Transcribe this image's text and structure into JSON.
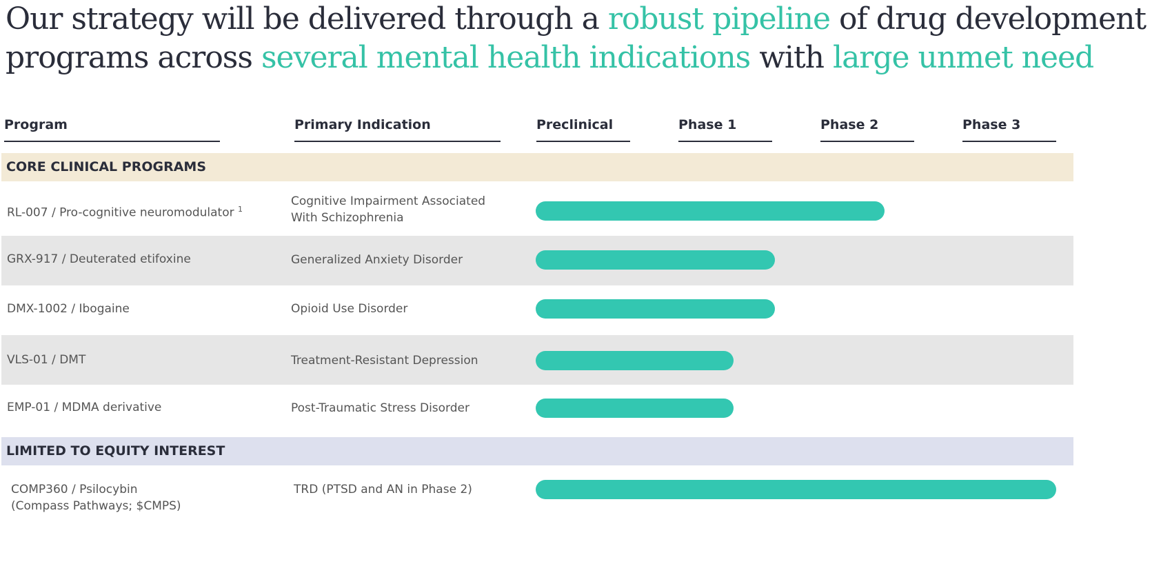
{
  "title": {
    "parts": [
      {
        "text": "Our strategy will be delivered through a ",
        "highlight": false
      },
      {
        "text": "robust pipeline",
        "highlight": true
      },
      {
        "text": " of drug development",
        "highlight": false
      },
      {
        "text": "programs across ",
        "highlight": false
      },
      {
        "text": "several mental health indications",
        "highlight": true
      },
      {
        "text": " with ",
        "highlight": false
      },
      {
        "text": "large unmet need",
        "highlight": true
      }
    ]
  },
  "columns": {
    "program": "Program",
    "indication": "Primary Indication",
    "phases": [
      "Preclinical",
      "Phase 1",
      "Phase 2",
      "Phase 3"
    ]
  },
  "sections": [
    {
      "label": "CORE CLINICAL PROGRAMS",
      "color": "#f3ead6"
    },
    {
      "label": "LIMITED TO EQUITY INTEREST",
      "color": "#dde0ee"
    }
  ],
  "rows": [
    {
      "program": "RL-007 / Pro-cognitive neuromodulator",
      "footnote": "1",
      "indication": "Cognitive Impairment Associated With Schizophrenia",
      "progress": 0.67
    },
    {
      "program": "GRX-917 / Deuterated etifoxine",
      "indication": "Generalized Anxiety Disorder",
      "progress": 0.46
    },
    {
      "program": "DMX-1002 / Ibogaine",
      "indication": "Opioid Use Disorder",
      "progress": 0.46
    },
    {
      "program": "VLS-01 / DMT",
      "indication": "Treatment-Resistant Depression",
      "progress": 0.38
    },
    {
      "program": "EMP-01 / MDMA derivative",
      "indication": "Post-Traumatic Stress Disorder",
      "progress": 0.38
    },
    {
      "program": "COMP360 / Psilocybin",
      "program_line2": "(Compass Pathways; $CMPS)",
      "indication": "TRD (PTSD and AN in Phase 2)",
      "progress": 1.0
    }
  ],
  "colors": {
    "bar": "#33c7b1",
    "highlight": "#35c2a6",
    "row_alt": "#e6e6e6"
  }
}
